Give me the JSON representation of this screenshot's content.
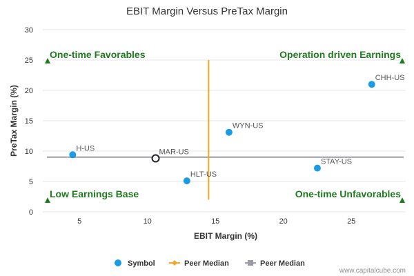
{
  "chart_data": {
    "type": "scatter",
    "title": "EBIT Margin Versus PreTax Margin",
    "xlabel": "EBIT Margin (%)",
    "ylabel": "PreTax Margin (%)",
    "xlim": [
      2.3,
      29
    ],
    "ylim": [
      0,
      30
    ],
    "xticks": [
      5,
      10,
      15,
      20,
      25
    ],
    "yticks": [
      0,
      5,
      10,
      15,
      20,
      25,
      30
    ],
    "points": [
      {
        "label": "CHH-US",
        "x": 26.5,
        "y": 21.0
      },
      {
        "label": "WYN-US",
        "x": 16.0,
        "y": 13.1
      },
      {
        "label": "H-US",
        "x": 4.5,
        "y": 9.4
      },
      {
        "label": "MAR-US",
        "x": 10.6,
        "y": 8.8,
        "highlight": true
      },
      {
        "label": "STAY-US",
        "x": 22.5,
        "y": 7.2
      },
      {
        "label": "HLT-US",
        "x": 12.9,
        "y": 5.1
      }
    ],
    "peer_median_x": 14.5,
    "peer_median_y": 9.0,
    "peer_median_x_range": [
      2,
      25
    ],
    "quadrants": {
      "top_left": "One-time Favorables",
      "top_right": "Operation driven Earnings",
      "bottom_left": "Low Earnings Base",
      "bottom_right": "One-time Unfavorables"
    },
    "legend": [
      "Symbol",
      "Peer Median",
      "Peer Median"
    ],
    "colors": {
      "point": "#1a9be6",
      "highlight_point": "#222222",
      "x_median": "#f5a623",
      "y_median": "#9a9aa8",
      "quadrant": "#1f7a1f",
      "grid": "#e6e6e6"
    }
  },
  "credit": "www.capitalcube.com"
}
